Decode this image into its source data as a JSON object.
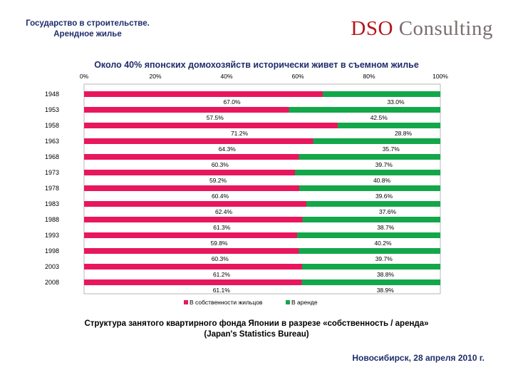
{
  "header": {
    "title_line1": "Государство в строительстве.",
    "title_line2": "Арендное жилье"
  },
  "logo": {
    "part1": "DSO",
    "part2": "Consulting"
  },
  "chart_data": {
    "type": "bar",
    "orientation": "horizontal",
    "stacked": true,
    "percent": true,
    "title": "Около 40% японских домохозяйств исторически живет в съемном жилье",
    "categories": [
      "1948",
      "1953",
      "1958",
      "1963",
      "1968",
      "1973",
      "1978",
      "1983",
      "1988",
      "1993",
      "1998",
      "2003",
      "2008"
    ],
    "series": [
      {
        "name": "В собственности жильцов",
        "color": "#e8175d",
        "values": [
          67.0,
          57.5,
          71.2,
          64.3,
          60.3,
          59.2,
          60.4,
          62.4,
          61.3,
          59.8,
          60.3,
          61.2,
          61.1
        ],
        "labels": [
          "67.0%",
          "57.5%",
          "71.2%",
          "64.3%",
          "60.3%",
          "59.2%",
          "60.4%",
          "62.4%",
          "61.3%",
          "59.8%",
          "60.3%",
          "61.2%",
          "61.1%"
        ]
      },
      {
        "name": "В аренде",
        "color": "#13a74a",
        "values": [
          33.0,
          42.5,
          28.8,
          35.7,
          39.7,
          40.8,
          39.6,
          37.6,
          38.7,
          40.2,
          39.7,
          38.8,
          38.9
        ],
        "labels": [
          "33.0%",
          "42.5%",
          "28.8%",
          "35.7%",
          "39.7%",
          "40.8%",
          "39.6%",
          "37.6%",
          "38.7%",
          "40.2%",
          "39.7%",
          "38.8%",
          "38.9%"
        ]
      }
    ],
    "xlim": [
      0,
      100
    ],
    "x_ticks": [
      "0%",
      "20%",
      "40%",
      "60%",
      "80%",
      "100%"
    ],
    "legend_position": "bottom",
    "grid": false
  },
  "caption": {
    "line1": "Структура занятого квартирного фонда Японии в разрезе «собственность / аренда»",
    "line2": "(Japan's Statistics Bureau)"
  },
  "footer": {
    "text": "Новосибирск, 28 апреля 2010 г."
  }
}
